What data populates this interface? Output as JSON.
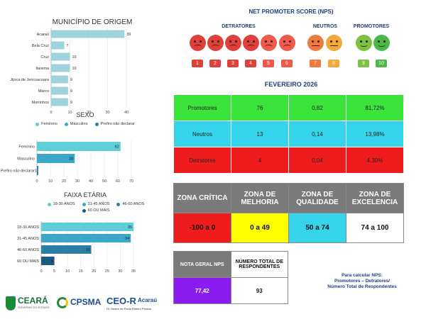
{
  "municipio": {
    "title": "MUNICÍPIO DE ORIGEM",
    "chart_data": {
      "type": "bar",
      "orientation": "horizontal",
      "title": "MUNICÍPIO DE ORIGEM",
      "categories": [
        "Acaraú",
        "Bela Cruz",
        "Cruz",
        "Itarema",
        "Jijoca de Jericoacoara",
        "Marco",
        "Morrinhos"
      ],
      "values": [
        39,
        7,
        10,
        10,
        9,
        9,
        9
      ],
      "xlim": [
        0,
        40
      ],
      "xticks": [
        "0",
        "10",
        "20",
        "30",
        "40"
      ],
      "color": "#9ed3dc"
    }
  },
  "sexo": {
    "title": "SEXO",
    "legend": [
      {
        "label": "Feminino",
        "color": "#5ecfd6"
      },
      {
        "label": "Masculino",
        "color": "#3ba7c9"
      },
      {
        "label": "Prefiro não declarar",
        "color": "#2b7ea6"
      }
    ],
    "chart_data": {
      "type": "bar",
      "orientation": "horizontal",
      "title": "SEXO",
      "categories": [
        "Feminino",
        "Masculino",
        "Prefiro não declarar"
      ],
      "values": [
        62,
        28,
        1
      ],
      "value_labels": [
        "62",
        "28",
        "1"
      ],
      "xlim": [
        0,
        70
      ],
      "xticks": [
        "0",
        "10",
        "20",
        "30",
        "40",
        "50",
        "60",
        "70"
      ],
      "colors": [
        "#5ecfd6",
        "#3ba7c9",
        "#2b7ea6"
      ]
    }
  },
  "faixa": {
    "title": "FAIXA ETÁRIA",
    "legend": [
      {
        "label": "18-30 ANOS",
        "color": "#5ecfd6"
      },
      {
        "label": "31-45 ANOS",
        "color": "#3ba7c9"
      },
      {
        "label": "46-60 ANOS",
        "color": "#2b7ea6"
      },
      {
        "label": "60 OU MAIS",
        "color": "#1d5a80"
      }
    ],
    "chart_data": {
      "type": "bar",
      "orientation": "horizontal",
      "title": "FAIXA ETÁRIA",
      "categories": [
        "18-30 ANOS",
        "31-45 ANOS",
        "46-60 ANOS",
        "60 OU MAIS"
      ],
      "values": [
        35,
        34,
        19,
        5
      ],
      "value_labels": [
        "35",
        "34",
        "19",
        "5"
      ],
      "xlim": [
        0,
        35
      ],
      "xticks": [
        "0",
        "5",
        "10",
        "15",
        "20",
        "25",
        "30",
        "35"
      ],
      "colors": [
        "#5ecfd6",
        "#3ba7c9",
        "#2b7ea6",
        "#1d5a80"
      ]
    }
  },
  "nps_scale": {
    "title": "NET PROMOTER SCORE (NPS)",
    "groups": {
      "detratores": "DETRATORES",
      "neutros": "NEUTROS",
      "promotores": "PROMOTORES"
    },
    "scores": [
      {
        "n": "1",
        "group": "detrator",
        "color": "#e0403a"
      },
      {
        "n": "2",
        "group": "detrator",
        "color": "#e0403a"
      },
      {
        "n": "3",
        "group": "detrator",
        "color": "#e0403a"
      },
      {
        "n": "4",
        "group": "detrator",
        "color": "#e0403a"
      },
      {
        "n": "5",
        "group": "detrator",
        "color": "#ef5a4c"
      },
      {
        "n": "6",
        "group": "detrator",
        "color": "#ef5a4c"
      },
      {
        "n": "7",
        "group": "neutro",
        "color": "#f07a3e"
      },
      {
        "n": "8",
        "group": "neutro",
        "color": "#f3a83a"
      },
      {
        "n": "9",
        "group": "promotor",
        "color": "#7cc242"
      },
      {
        "n": "10",
        "group": "promotor",
        "color": "#4db84a"
      }
    ]
  },
  "month_title": "FEVEREIRO 2026",
  "nps_table": {
    "rows": [
      {
        "label": "Promotores",
        "count": "76",
        "ratio": "0,82",
        "pct": "81,72%",
        "color": "#3ce33a"
      },
      {
        "label": "Neutros",
        "count": "13",
        "ratio": "0,14",
        "pct": "13,98%",
        "color": "#36d4ea"
      },
      {
        "label": "Detratores",
        "count": "4",
        "ratio": "0,04",
        "pct": "4,30%",
        "color": "#ee1c1c"
      }
    ]
  },
  "zones": [
    {
      "title": "ZONA CRÍTICA",
      "range": "-100 a 0",
      "bg": "#ee1c1c"
    },
    {
      "title": "ZONA DE MELHORIA",
      "range": "0 a 49",
      "bg": "#ffff00"
    },
    {
      "title": "ZONA DE QUALIDADE",
      "range": "50 a 74",
      "bg": "#36d4ea"
    },
    {
      "title": "ZONA DE EXCELENCIA",
      "range": "74 a 100",
      "bg": "#ffffff"
    }
  ],
  "summary": {
    "nota_label": "NOTA GERAL NPS",
    "nota_value": "77,42",
    "total_label": "NÚMERO TOTAL DE RESPONDENTES",
    "total_value": "93"
  },
  "formula": {
    "line1": "Para calcular NPS:",
    "line2": "Promotores – Detratores/",
    "line3": "Número Total de Respondentes"
  },
  "logos": {
    "ceara": "CEARÁ",
    "ceara_sub": "GOVERNO DO ESTADO",
    "cpsma": "CPSMA",
    "ceor": "CEO-R",
    "ceor_city": "Acaraú",
    "ceor_sub": "Dr. Nestor de Paula Ribeiro Pessoa"
  }
}
